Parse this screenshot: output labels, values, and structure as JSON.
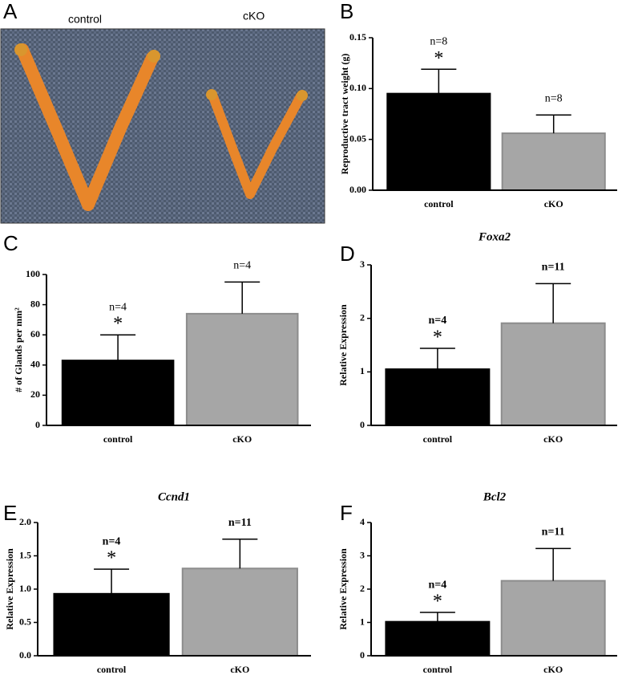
{
  "photo": {
    "label": "A",
    "labels": [
      "control",
      "cKO"
    ]
  },
  "chart_data": [
    {
      "type": "bar",
      "label": "B",
      "ylabel": "Reproductive tract  weight (g)",
      "categories": [
        "control",
        "cKO"
      ],
      "values": [
        0.095,
        0.056
      ],
      "errors": [
        0.024,
        0.018
      ],
      "colors": [
        "#000000",
        "#a6a6a6"
      ],
      "n_labels": [
        "n=8",
        "n=8"
      ],
      "marks": [
        "*",
        null
      ],
      "annotation_bold": false,
      "ylim": [
        0,
        0.15
      ],
      "yticks": [
        {
          "value": 0,
          "label": "0.00"
        },
        0.05,
        {
          "value": 0.1,
          "label": "0.10"
        },
        0.15
      ]
    },
    {
      "type": "bar",
      "label": "C",
      "ylabel": "# of Glands per mm²",
      "categories": [
        "control",
        "cKO"
      ],
      "values": [
        43,
        74
      ],
      "errors": [
        17,
        21
      ],
      "colors": [
        "#000000",
        "#a6a6a6"
      ],
      "n_labels": [
        "n=4",
        "n=4"
      ],
      "marks": [
        "*",
        null
      ],
      "annotation_bold": false,
      "ylim": [
        0,
        100
      ],
      "yticks": [
        0,
        20,
        40,
        60,
        80,
        100
      ]
    },
    {
      "type": "bar",
      "label": "D",
      "title": "Foxa2",
      "ylabel": "Relative Expression",
      "categories": [
        "control",
        "cKO"
      ],
      "values": [
        1.05,
        1.91
      ],
      "errors": [
        0.39,
        0.74
      ],
      "colors": [
        "#000000",
        "#a6a6a6"
      ],
      "n_labels": [
        "n=4",
        "n=11"
      ],
      "marks": [
        "*",
        null
      ],
      "annotation_bold": true,
      "ylim": [
        0,
        3
      ],
      "yticks": [
        0,
        1,
        2,
        3
      ]
    },
    {
      "type": "bar",
      "label": "E",
      "title": "Ccnd1",
      "ylabel": "Relative Expression",
      "categories": [
        "control",
        "cKO"
      ],
      "values": [
        0.93,
        1.31
      ],
      "errors": [
        0.37,
        0.44
      ],
      "colors": [
        "#000000",
        "#a6a6a6"
      ],
      "n_labels": [
        "n=4",
        "n=11"
      ],
      "marks": [
        "*",
        null
      ],
      "annotation_bold": true,
      "ylim": [
        0,
        2
      ],
      "yticks": [
        {
          "value": 0,
          "label": "0.0"
        },
        0.5,
        {
          "value": 1,
          "label": "1.0"
        },
        1.5,
        {
          "value": 2,
          "label": "2.0"
        }
      ]
    },
    {
      "type": "bar",
      "label": "F",
      "title": "Bcl2",
      "ylabel": "Relative Expression",
      "categories": [
        "control",
        "cKO"
      ],
      "values": [
        1.02,
        2.25
      ],
      "errors": [
        0.28,
        0.97
      ],
      "colors": [
        "#000000",
        "#a6a6a6"
      ],
      "n_labels": [
        "n=4",
        "n=11"
      ],
      "marks": [
        "*",
        null
      ],
      "annotation_bold": true,
      "ylim": [
        0,
        4
      ],
      "yticks": [
        0,
        1,
        2,
        3,
        4
      ]
    }
  ]
}
